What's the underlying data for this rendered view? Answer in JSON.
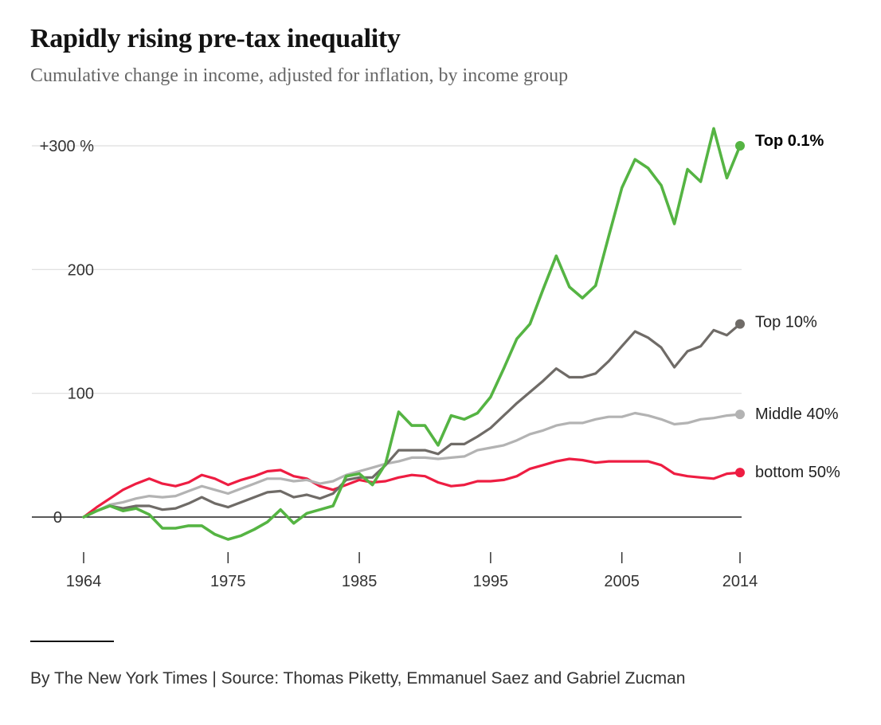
{
  "header": {
    "title": "Rapidly rising pre-tax inequality",
    "subtitle": "Cumulative change in income, adjusted for inflation, by income group"
  },
  "footer": {
    "credit": "By The New York Times | Source: Thomas Piketty, Emmanuel Saez and Gabriel Zucman"
  },
  "chart_data": {
    "type": "line",
    "title": "Rapidly rising pre-tax inequality",
    "subtitle": "Cumulative change in income, adjusted for inflation, by income group",
    "xlabel": "",
    "ylabel": "",
    "xlim": [
      1964,
      2014
    ],
    "ylim": [
      -25,
      320
    ],
    "x_ticks": [
      {
        "value": 1964,
        "label": "1964"
      },
      {
        "value": 1975,
        "label": "1975"
      },
      {
        "value": 1985,
        "label": "1985"
      },
      {
        "value": 1995,
        "label": "1995"
      },
      {
        "value": 2005,
        "label": "2005"
      },
      {
        "value": 2014,
        "label": "2014"
      }
    ],
    "y_ticks": [
      {
        "value": 0,
        "label": "0"
      },
      {
        "value": 100,
        "label": "100"
      },
      {
        "value": 200,
        "label": "200"
      },
      {
        "value": 300,
        "label": "+300 %"
      }
    ],
    "grid": true,
    "legend": "end-of-line labels",
    "x": [
      1964,
      1965,
      1966,
      1967,
      1968,
      1969,
      1970,
      1971,
      1972,
      1973,
      1974,
      1975,
      1976,
      1977,
      1978,
      1979,
      1980,
      1981,
      1982,
      1983,
      1984,
      1985,
      1986,
      1987,
      1988,
      1989,
      1990,
      1991,
      1992,
      1993,
      1994,
      1995,
      1996,
      1997,
      1998,
      1999,
      2000,
      2001,
      2002,
      2003,
      2004,
      2005,
      2006,
      2007,
      2008,
      2009,
      2010,
      2011,
      2012,
      2013,
      2014
    ],
    "series": [
      {
        "name": "Top 0.1%",
        "color": "#55b443",
        "bold": true,
        "values": [
          0,
          5,
          9,
          5,
          7,
          2,
          -9,
          -9,
          -7,
          -7,
          -14,
          -18,
          -15,
          -10,
          -4,
          6,
          -5,
          3,
          6,
          9,
          33,
          35,
          26,
          43,
          85,
          74,
          74,
          58,
          82,
          79,
          84,
          97,
          120,
          144,
          156,
          184,
          211,
          186,
          177,
          187,
          227,
          266,
          289,
          282,
          268,
          237,
          281,
          271,
          314,
          274,
          300
        ]
      },
      {
        "name": "Top 10%",
        "color": "#6f6b67",
        "bold": false,
        "values": [
          0,
          5,
          9,
          7,
          9,
          9,
          6,
          7,
          11,
          16,
          11,
          8,
          12,
          16,
          20,
          21,
          16,
          18,
          15,
          19,
          30,
          32,
          32,
          42,
          54,
          54,
          54,
          51,
          59,
          59,
          65,
          72,
          82,
          92,
          101,
          110,
          120,
          113,
          113,
          116,
          126,
          138,
          150,
          145,
          137,
          121,
          134,
          138,
          151,
          147,
          156
        ]
      },
      {
        "name": "Middle 40%",
        "color": "#b3b3b3",
        "bold": false,
        "values": [
          0,
          5,
          10,
          12,
          15,
          17,
          16,
          17,
          21,
          25,
          22,
          19,
          23,
          27,
          31,
          31,
          29,
          30,
          27,
          29,
          34,
          37,
          40,
          43,
          45,
          48,
          48,
          47,
          48,
          49,
          54,
          56,
          58,
          62,
          67,
          70,
          74,
          76,
          76,
          79,
          81,
          81,
          84,
          82,
          79,
          75,
          76,
          79,
          80,
          82,
          83
        ]
      },
      {
        "name": "bottom 50%",
        "color": "#ee1d42",
        "bold": false,
        "values": [
          0,
          8,
          15,
          22,
          27,
          31,
          27,
          25,
          28,
          34,
          31,
          26,
          30,
          33,
          37,
          38,
          33,
          31,
          25,
          22,
          26,
          30,
          28,
          29,
          32,
          34,
          33,
          28,
          25,
          26,
          29,
          29,
          30,
          33,
          39,
          42,
          45,
          47,
          46,
          44,
          45,
          45,
          45,
          45,
          42,
          35,
          33,
          32,
          31,
          35,
          36
        ]
      }
    ]
  }
}
